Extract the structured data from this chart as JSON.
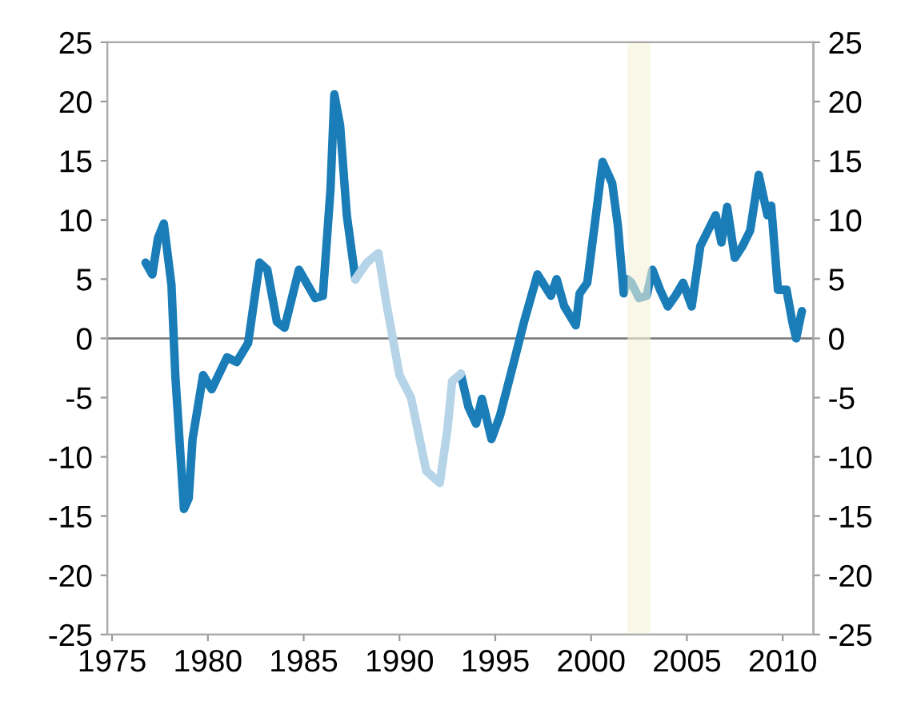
{
  "chart_data": {
    "type": "line",
    "series": [
      {
        "color": "#1a7db8",
        "x": [
          1976.75,
          1977.1,
          1977.4,
          1977.7,
          1978.1,
          1978.3,
          1978.75,
          1979.0,
          1979.2,
          1979.75,
          1980.2,
          1981.0,
          1981.5,
          1982.1,
          1982.7,
          1983.1,
          1983.6,
          1984.0,
          1984.75,
          1985.6,
          1986.0,
          1986.4,
          1986.6,
          1986.9,
          1987.25,
          1987.7,
          1990.0,
          1993.2,
          1993.6,
          1994.0,
          1994.3,
          1994.8,
          1995.25,
          1996.0,
          1996.5,
          1997.2,
          1997.9,
          1998.2,
          1998.6,
          1999.2,
          1999.4,
          1999.8,
          2000.25,
          2000.6,
          2001.1,
          2001.4,
          2001.7,
          2001.9,
          2002.1,
          2002.5,
          2002.9,
          2003.2,
          2003.6,
          2004.0,
          2004.4,
          2004.8,
          2005.25,
          2005.7,
          2006.1,
          2006.5,
          2006.8,
          2007.1,
          2007.5,
          2007.9,
          2008.3,
          2008.75,
          2009.2,
          2009.4,
          2009.75,
          2010.2,
          2010.5,
          2010.7,
          2011.0
        ],
        "values": [
          6.4,
          5.4,
          8.5,
          9.7,
          4.5,
          -3.1,
          -14.4,
          -13.5,
          -8.5,
          -3.1,
          -4.3,
          -1.6,
          -2.0,
          -0.4,
          6.4,
          5.8,
          1.4,
          0.9,
          5.8,
          3.4,
          3.6,
          12.6,
          20.6,
          18.0,
          10.4,
          5.0,
          null,
          -3.0,
          -5.8,
          -7.2,
          -5.1,
          -8.5,
          -6.5,
          -1.8,
          1.4,
          5.4,
          3.6,
          5.0,
          2.7,
          1.1,
          3.8,
          4.7,
          10.4,
          14.9,
          13.1,
          9.5,
          3.8,
          5.0,
          4.7,
          3.4,
          3.6,
          5.8,
          4.1,
          2.7,
          3.6,
          4.7,
          2.7,
          7.8,
          9.1,
          10.4,
          8.1,
          11.1,
          6.8,
          7.8,
          9.1,
          13.8,
          10.4,
          11.2,
          4.1,
          4.1,
          1.4,
          0,
          2.3
        ]
      },
      {
        "color": "#b5d4e8",
        "x": [
          1987.7,
          1988.3,
          1988.9,
          1989.3,
          1990.0,
          1990.6,
          1991.4,
          1992.1,
          1992.5,
          1992.75,
          1993.2
        ],
        "values": [
          5.0,
          6.4,
          7.2,
          3.1,
          -3.1,
          -5.0,
          -11.2,
          -12.2,
          -7.7,
          -3.6,
          -3.0
        ]
      }
    ],
    "xlim": [
      1974.75,
      2011.6
    ],
    "xticks": [
      1975,
      1980,
      1985,
      1990,
      1995,
      2000,
      2005,
      2010
    ],
    "ylim": [
      -25,
      25
    ],
    "yticks": [
      -25,
      -20,
      -15,
      -10,
      -5,
      0,
      5,
      10,
      15,
      20,
      25
    ],
    "y2lim": [
      -25,
      25
    ],
    "y2ticks": [
      -25,
      -20,
      -15,
      -10,
      -5,
      0,
      5,
      10,
      15,
      20,
      25
    ],
    "ref_lines": [
      {
        "axis": "y",
        "value": 0,
        "color": "#808080"
      }
    ],
    "bands": [
      {
        "axis": "x",
        "from": 2001.9,
        "to": 2003.1,
        "color": "#f4f1d8"
      }
    ],
    "grid": false,
    "line_style": "solid",
    "marker": "none"
  }
}
